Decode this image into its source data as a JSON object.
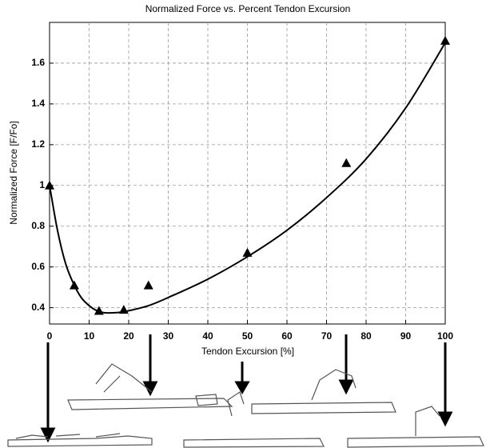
{
  "chart_data": {
    "type": "scatter",
    "title": "Normalized Force vs. Percent Tendon Excursion",
    "x_label": "Tendon Excursion [%]",
    "y_label": "Normalized Force [F/Fo]",
    "xlim": [
      0,
      100
    ],
    "ylim": [
      0.32,
      1.8
    ],
    "xticks": [
      0,
      10,
      20,
      30,
      40,
      50,
      60,
      70,
      80,
      90,
      100
    ],
    "yticks": [
      0.4,
      0.6,
      0.8,
      1,
      1.2,
      1.4,
      1.6
    ],
    "grid": true,
    "series": [
      {
        "style": "marker",
        "color": "#000000",
        "x": [
          0,
          6.25,
          12.5,
          18.75,
          25,
          50,
          75,
          100
        ],
        "values": [
          1.0,
          0.51,
          0.385,
          0.39,
          0.51,
          0.67,
          1.11,
          1.71
        ]
      },
      {
        "style": "line",
        "color": "#000000",
        "x": [
          0,
          2,
          4,
          6,
          8,
          10,
          12,
          14,
          16,
          18,
          20,
          25,
          30,
          40,
          50,
          60,
          70,
          80,
          90,
          100
        ],
        "values": [
          1.0,
          0.78,
          0.62,
          0.52,
          0.45,
          0.41,
          0.385,
          0.375,
          0.375,
          0.378,
          0.385,
          0.41,
          0.45,
          0.54,
          0.65,
          0.78,
          0.94,
          1.13,
          1.38,
          1.7
        ]
      }
    ]
  }
}
